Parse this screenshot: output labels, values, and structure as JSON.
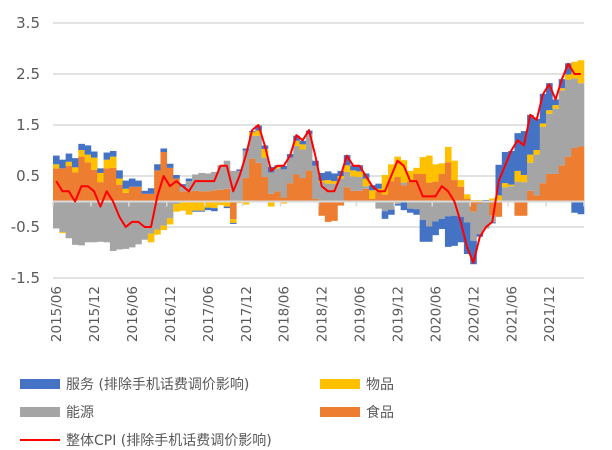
{
  "chart_data": {
    "type": "bar",
    "stacked": true,
    "title": "",
    "xlabel": "",
    "ylabel": "",
    "ylim": [
      -1.5,
      3.5
    ],
    "yticks": [
      "3.5",
      "2.5",
      "1.5",
      "0.5",
      "-0.5",
      "-1.5"
    ],
    "grid": true,
    "legend_position": "bottom",
    "x_start": "2015/06",
    "x_end": "2022/05",
    "x_tick_labels": [
      "2015/06",
      "2015/12",
      "2016/06",
      "2016/12",
      "2017/06",
      "2017/12",
      "2018/06",
      "2018/12",
      "2019/06",
      "2019/12",
      "2020/06",
      "2020/12",
      "2021/06",
      "2021/12"
    ],
    "series": [
      {
        "name": "食品",
        "kind": "bar",
        "color": "#ed7d31",
        "values": [
          0.65,
          0.65,
          0.7,
          0.57,
          0.88,
          0.77,
          0.62,
          0.38,
          0.65,
          0.66,
          0.33,
          0.17,
          0.29,
          0.29,
          0.15,
          0.15,
          0.61,
          0.97,
          0.66,
          0.45,
          0.2,
          0.2,
          0.21,
          0.2,
          0.2,
          0.22,
          0.23,
          0.25,
          -0.35,
          0,
          0.46,
          0.84,
          0.76,
          0.48,
          0.15,
          0.2,
          0.08,
          0.36,
          0.53,
          0.46,
          0.61,
          0.05,
          -0.28,
          -0.4,
          -0.38,
          -0.08,
          0.28,
          0.21,
          0.21,
          0.25,
          0.05,
          0.2,
          0.14,
          0.4,
          0.48,
          0.32,
          0.4,
          0.54,
          0.54,
          0.37,
          0.39,
          0.54,
          0.77,
          0.42,
          0.29,
          0.05,
          -0.2,
          -0.04,
          -0.02,
          -0.28,
          -0.3,
          0,
          0,
          -0.28,
          -0.28,
          0.21,
          0.12,
          0.36,
          0.54,
          0.54,
          0.71,
          0.88,
          1.05,
          1.08
        ]
      },
      {
        "name": "能源",
        "kind": "bar",
        "color": "#a5a5a5",
        "values": [
          -0.53,
          -0.6,
          -0.72,
          -0.85,
          -0.86,
          -0.8,
          -0.8,
          -0.79,
          -0.8,
          -0.97,
          -0.94,
          -0.93,
          -0.9,
          -0.84,
          -0.75,
          -0.63,
          -0.55,
          -0.47,
          -0.33,
          -0.05,
          0.09,
          0.2,
          0.32,
          0.36,
          0.35,
          0.36,
          0.48,
          0.55,
          0.6,
          0.6,
          0.54,
          0.45,
          0.53,
          0.38,
          0.42,
          0.45,
          0.55,
          0.5,
          0.56,
          0.56,
          0.71,
          0.65,
          0.38,
          0.35,
          0.35,
          0.45,
          0.3,
          0.28,
          0.27,
          0.05,
          0,
          -0.14,
          -0.19,
          -0.16,
          -0.05,
          0.05,
          -0.14,
          -0.15,
          -0.36,
          -0.49,
          -0.39,
          -0.34,
          -0.29,
          -0.28,
          -0.3,
          -0.41,
          -0.57,
          -0.6,
          -0.51,
          -0.13,
          0,
          0.28,
          0.3,
          0.39,
          0.38,
          0.55,
          0.8,
          1.1,
          1.18,
          1.28,
          1.47,
          1.51,
          1.36,
          1.24
        ]
      },
      {
        "name": "物品",
        "kind": "bar",
        "color": "#ffc000",
        "values": [
          0.08,
          -0.02,
          0.08,
          0.1,
          0.13,
          0.15,
          0.24,
          0.18,
          0.17,
          0.22,
          0.12,
          0.08,
          0,
          0,
          0,
          -0.17,
          -0.1,
          -0.09,
          -0.12,
          -0.15,
          -0.18,
          -0.26,
          -0.18,
          -0.18,
          -0.12,
          -0.13,
          -0.07,
          -0.1,
          -0.07,
          -0.03,
          -0.06,
          0.07,
          0.1,
          0.17,
          -0.1,
          0.03,
          -0.04,
          0,
          0.1,
          0.1,
          0,
          0,
          0.03,
          0.07,
          0.05,
          0.05,
          0.13,
          0.12,
          0.11,
          0.15,
          0.17,
          0.05,
          0.38,
          0.33,
          0.4,
          0.44,
          0.2,
          0.12,
          0.33,
          0.53,
          0.34,
          0.21,
          0.3,
          0.38,
          0.13,
          0.09,
          0.03,
          0.03,
          0,
          0.06,
          0.12,
          0.08,
          0.03,
          0.21,
          0.14,
          0.16,
          0.09,
          0.07,
          0.07,
          0.07,
          0.04,
          0.1,
          0.33,
          0.45
        ]
      },
      {
        "name": "服务 (排除手机话费调价影响)",
        "kind": "bar",
        "color": "#4472c4",
        "values": [
          0.17,
          0.17,
          0.16,
          0.18,
          0.12,
          0.18,
          0.12,
          0.09,
          0.14,
          0.11,
          0.16,
          0.16,
          0.16,
          0.12,
          0.06,
          0.11,
          0.12,
          0.07,
          0.08,
          0.07,
          0.05,
          0.05,
          -0.02,
          -0.02,
          -0.05,
          -0.06,
          0,
          -0.03,
          -0.02,
          0.03,
          0.04,
          0.02,
          0.1,
          0.07,
          0.11,
          0.03,
          0.07,
          0.07,
          0.1,
          0.07,
          0.07,
          0.1,
          0.15,
          0.17,
          0.15,
          0.1,
          0.2,
          0.1,
          0.12,
          0.1,
          0.1,
          0.1,
          -0.15,
          -0.1,
          -0.03,
          -0.17,
          -0.08,
          -0.11,
          -0.43,
          -0.3,
          -0.27,
          -0.2,
          -0.6,
          -0.59,
          -0.5,
          -0.62,
          -0.46,
          -0.05,
          0.03,
          -0.02,
          0.6,
          0.61,
          0.66,
          0.74,
          0.86,
          0.78,
          0.61,
          0.58,
          0.53,
          0.11,
          0.18,
          0.22,
          -0.22,
          -0.25
        ]
      },
      {
        "name": "整体CPI (排除手机话费调价影响)",
        "kind": "line",
        "color": "#ff0000",
        "values": [
          0.4,
          0.2,
          0.2,
          0.0,
          0.3,
          0.3,
          0.2,
          -0.1,
          0.2,
          0.0,
          -0.3,
          -0.5,
          -0.4,
          -0.4,
          -0.5,
          -0.5,
          0.1,
          0.5,
          0.3,
          0.4,
          0.3,
          0.2,
          0.4,
          0.4,
          0.4,
          0.4,
          0.7,
          0.7,
          0.2,
          0.5,
          0.9,
          1.4,
          1.5,
          1.1,
          0.6,
          0.7,
          0.7,
          0.9,
          1.3,
          1.2,
          1.4,
          0.9,
          0.3,
          0.2,
          0.2,
          0.5,
          0.9,
          0.7,
          0.7,
          0.5,
          0.3,
          0.2,
          0.2,
          0.5,
          0.8,
          0.7,
          0.4,
          0.4,
          0.1,
          0.1,
          0.1,
          0.3,
          0.2,
          0.0,
          -0.4,
          -0.9,
          -1.2,
          -0.7,
          -0.5,
          -0.4,
          0.4,
          0.7,
          1.0,
          1.2,
          1.1,
          1.7,
          1.6,
          2.1,
          2.3,
          2.0,
          2.4,
          2.7,
          2.5,
          2.5
        ]
      }
    ]
  },
  "legend": {
    "services": "服务 (排除手机话费调价影响)",
    "goods": "物品",
    "energy": "能源",
    "food": "食品",
    "cpi": "整体CPI (排除手机话费调价影响)"
  }
}
